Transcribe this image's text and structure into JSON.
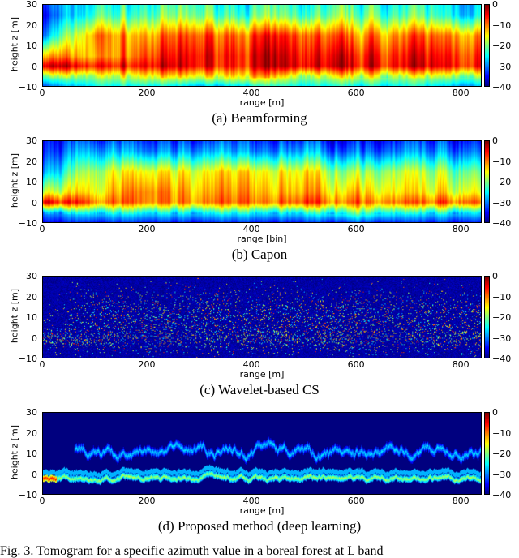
{
  "chart_data": [
    {
      "type": "heatmap",
      "caption": "(a) Beamforming",
      "xlabel": "range [m]",
      "ylabel": "height z [m]",
      "xlim": [
        0,
        840
      ],
      "ylim": [
        -10,
        30
      ],
      "xticks": [
        0,
        200,
        400,
        600,
        800
      ],
      "yticks": [
        -10,
        0,
        10,
        20,
        30
      ],
      "colorbar": {
        "colormap": "jet",
        "range": [
          -40,
          0
        ],
        "ticks": [
          0,
          -10,
          -20,
          -30,
          -40
        ]
      },
      "grid_x": [
        0,
        100,
        200,
        300,
        400,
        500,
        600,
        700,
        800
      ],
      "grid_z": [
        30,
        25,
        15,
        5,
        0,
        -5,
        -10
      ],
      "values_db": [
        [
          -33,
          -24,
          -24,
          -22,
          -24,
          -24,
          -22,
          -24,
          -26
        ],
        [
          -35,
          -22,
          -22,
          -20,
          -22,
          -22,
          -20,
          -22,
          -25
        ],
        [
          -30,
          -10,
          -12,
          -8,
          -8,
          -8,
          -10,
          -10,
          -10
        ],
        [
          -12,
          -12,
          -8,
          -5,
          -5,
          -5,
          -5,
          -6,
          -6
        ],
        [
          -3,
          -6,
          -5,
          -5,
          -5,
          -4,
          -4,
          -5,
          -5
        ],
        [
          -20,
          -18,
          -15,
          -15,
          -12,
          -18,
          -15,
          -18,
          -18
        ],
        [
          -32,
          -25,
          -25,
          -28,
          -25,
          -25,
          -25,
          -25,
          -28
        ]
      ]
    },
    {
      "type": "heatmap",
      "caption": "(b) Capon",
      "xlabel": "range [bin]",
      "ylabel": "height z [m]",
      "xlim": [
        0,
        840
      ],
      "ylim": [
        -10,
        30
      ],
      "xticks": [
        0,
        200,
        400,
        600,
        800
      ],
      "yticks": [
        -10,
        0,
        10,
        20,
        30
      ],
      "colorbar": {
        "colormap": "jet",
        "range": [
          -40,
          0
        ],
        "ticks": [
          0,
          -10,
          -20,
          -30,
          -40
        ]
      },
      "grid_x": [
        0,
        100,
        200,
        300,
        400,
        500,
        600,
        700,
        800
      ],
      "grid_z": [
        30,
        25,
        15,
        5,
        0,
        -5,
        -10
      ],
      "values_db": [
        [
          -36,
          -32,
          -33,
          -32,
          -33,
          -32,
          -33,
          -33,
          -33
        ],
        [
          -35,
          -28,
          -30,
          -28,
          -30,
          -28,
          -30,
          -30,
          -30
        ],
        [
          -30,
          -18,
          -15,
          -15,
          -15,
          -15,
          -18,
          -18,
          -20
        ],
        [
          -18,
          -15,
          -10,
          -12,
          -12,
          -12,
          -12,
          -15,
          -15
        ],
        [
          -5,
          -10,
          -10,
          -10,
          -10,
          -8,
          -8,
          -10,
          -8
        ],
        [
          -30,
          -25,
          -25,
          -25,
          -25,
          -25,
          -20,
          -25,
          -25
        ],
        [
          -36,
          -34,
          -34,
          -34,
          -34,
          -34,
          -32,
          -34,
          -34
        ]
      ]
    },
    {
      "type": "heatmap",
      "caption": "(c) Wavelet-based CS",
      "xlabel": "range [m]",
      "ylabel": "height z [m]",
      "xlim": [
        0,
        840
      ],
      "ylim": [
        -10,
        30
      ],
      "xticks": [
        0,
        200,
        400,
        600,
        800
      ],
      "yticks": [
        -10,
        0,
        10,
        20,
        30
      ],
      "colorbar": {
        "colormap": "jet",
        "range": [
          -40,
          0
        ],
        "ticks": [
          0,
          -10,
          -20,
          -30,
          -40
        ]
      },
      "grid_x": [
        0,
        100,
        200,
        300,
        400,
        500,
        600,
        700,
        800
      ],
      "grid_z": [
        30,
        25,
        15,
        5,
        0,
        -5,
        -10
      ],
      "values_db": [
        [
          -40,
          -40,
          -40,
          -40,
          -40,
          -40,
          -40,
          -40,
          -40
        ],
        [
          -40,
          -38,
          -38,
          -38,
          -38,
          -38,
          -38,
          -38,
          -38
        ],
        [
          -40,
          -28,
          -30,
          -28,
          -28,
          -28,
          -28,
          -30,
          -30
        ],
        [
          -36,
          -28,
          -25,
          -25,
          -25,
          -25,
          -25,
          -28,
          -28
        ],
        [
          -5,
          -22,
          -22,
          -22,
          -22,
          -22,
          -20,
          -22,
          -22
        ],
        [
          -38,
          -32,
          -32,
          -32,
          -32,
          -32,
          -30,
          -32,
          -32
        ],
        [
          -40,
          -40,
          -40,
          -40,
          -40,
          -40,
          -40,
          -40,
          -40
        ]
      ]
    },
    {
      "type": "heatmap",
      "caption": "(d) Proposed method (deep learning)",
      "xlabel": "range [m]",
      "ylabel": "height z [m]",
      "xlim": [
        0,
        840
      ],
      "ylim": [
        -10,
        30
      ],
      "xticks": [
        0,
        200,
        400,
        600,
        800
      ],
      "yticks": [
        -10,
        0,
        10,
        20,
        30
      ],
      "colorbar": {
        "colormap": "jet",
        "range": [
          -40,
          0
        ],
        "ticks": [
          0,
          -10,
          -20,
          -30,
          -40
        ]
      },
      "grid_x": [
        0,
        100,
        200,
        300,
        400,
        500,
        600,
        700,
        800
      ],
      "grid_z": [
        30,
        25,
        15,
        5,
        0,
        -5,
        -10
      ],
      "values_db": [
        [
          -40,
          -40,
          -40,
          -40,
          -40,
          -40,
          -40,
          -40,
          -40
        ],
        [
          -40,
          -40,
          -40,
          -40,
          -40,
          -40,
          -40,
          -40,
          -40
        ],
        [
          -40,
          -24,
          -28,
          -30,
          -26,
          -24,
          -28,
          -30,
          -30
        ],
        [
          -40,
          -30,
          -30,
          -30,
          -30,
          -30,
          -30,
          -30,
          -30
        ],
        [
          -5,
          -22,
          -22,
          -22,
          -22,
          -22,
          -22,
          -22,
          -22
        ],
        [
          -40,
          -24,
          -26,
          -24,
          -24,
          -24,
          -22,
          -24,
          -22
        ],
        [
          -40,
          -40,
          -40,
          -40,
          -40,
          -40,
          -40,
          -40,
          -40
        ]
      ]
    }
  ],
  "figure_caption": "Fig. 3.  Tomogram for a specific azimuth value in a boreal forest at L band"
}
